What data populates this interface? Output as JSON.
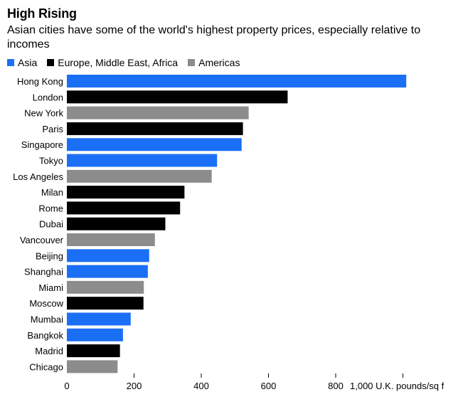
{
  "title": "High Rising",
  "subtitle": "Asian cities have some of the world's highest property prices, especially relative to incomes",
  "colors": {
    "Asia": "#1b6ff5",
    "Europe, Middle East, Africa": "#000000",
    "Americas": "#8c8c8c"
  },
  "legend": [
    {
      "label": "Asia",
      "color": "#1b6ff5"
    },
    {
      "label": "Europe, Middle East, Africa",
      "color": "#000000"
    },
    {
      "label": "Americas",
      "color": "#8c8c8c"
    }
  ],
  "chart_data": {
    "type": "bar",
    "orientation": "horizontal",
    "title": "High Rising",
    "subtitle": "Asian cities have some of the world's highest property prices, especially relative to incomes",
    "categories": [
      "Hong Kong",
      "London",
      "New York",
      "Paris",
      "Singapore",
      "Tokyo",
      "Los Angeles",
      "Milan",
      "Rome",
      "Dubai",
      "Vancouver",
      "Beijing",
      "Shanghai",
      "Miami",
      "Moscow",
      "Mumbai",
      "Bangkok",
      "Madrid",
      "Chicago"
    ],
    "values": [
      1010,
      657,
      541,
      524,
      520,
      447,
      431,
      350,
      337,
      293,
      262,
      245,
      241,
      229,
      228,
      190,
      167,
      158,
      151
    ],
    "regions": [
      "Asia",
      "Europe, Middle East, Africa",
      "Americas",
      "Europe, Middle East, Africa",
      "Asia",
      "Asia",
      "Americas",
      "Europe, Middle East, Africa",
      "Europe, Middle East, Africa",
      "Europe, Middle East, Africa",
      "Americas",
      "Asia",
      "Asia",
      "Americas",
      "Europe, Middle East, Africa",
      "Asia",
      "Asia",
      "Europe, Middle East, Africa",
      "Americas"
    ],
    "xlim": [
      0,
      1000
    ],
    "xticks": [
      0,
      200,
      400,
      600,
      800,
      1000
    ],
    "xtick_labels": [
      "0",
      "200",
      "400",
      "600",
      "800",
      "1,000 U.K. pounds/sq f"
    ],
    "xlabel": "",
    "ylabel": "",
    "grid": false,
    "legend_position": "top-left"
  }
}
